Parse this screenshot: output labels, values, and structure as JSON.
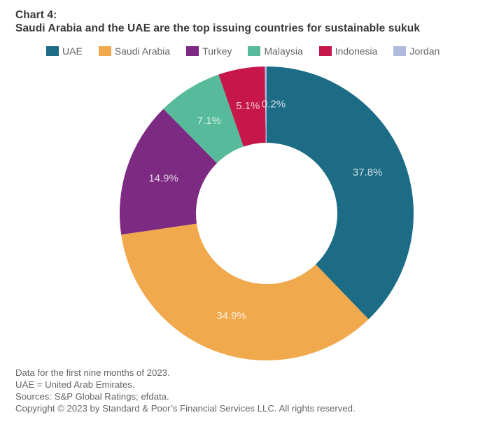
{
  "title": {
    "kicker": "Chart 4:",
    "text": "Saudi Arabia and the UAE are the top issuing countries for sustainable sukuk"
  },
  "chart_data": {
    "type": "pie",
    "subtype": "donut",
    "title": "Saudi Arabia and the UAE are the top issuing countries for sustainable sukuk",
    "units": "percent",
    "categories": [
      "UAE",
      "Saudi Arabia",
      "Turkey",
      "Malaysia",
      "Indonesia",
      "Jordan"
    ],
    "values": [
      37.8,
      34.9,
      14.9,
      7.1,
      5.1,
      0.2
    ],
    "data_labels": [
      "37.8%",
      "34.9%",
      "14.9%",
      "7.1%",
      "5.1%",
      "0.2%"
    ],
    "colors": [
      "#1d6c86",
      "#f0a94d",
      "#7c2a82",
      "#57bb9b",
      "#c6164a",
      "#b0badd"
    ],
    "start_angle_deg": 0,
    "direction": "clockwise",
    "inner_radius_ratio": 0.48,
    "legend_position": "top",
    "data_label_color": "rgba(255,255,255,0.78)",
    "label_dx": [
      0,
      0,
      0,
      0,
      0,
      11
    ]
  },
  "footnotes": [
    "Data for the first nine months of 2023.",
    "UAE = United Arab Emirates.",
    "Sources: S&P Global Ratings; efdata.",
    "Copyright © 2023 by Standard & Poor’s Financial Services LLC. All rights reserved."
  ]
}
